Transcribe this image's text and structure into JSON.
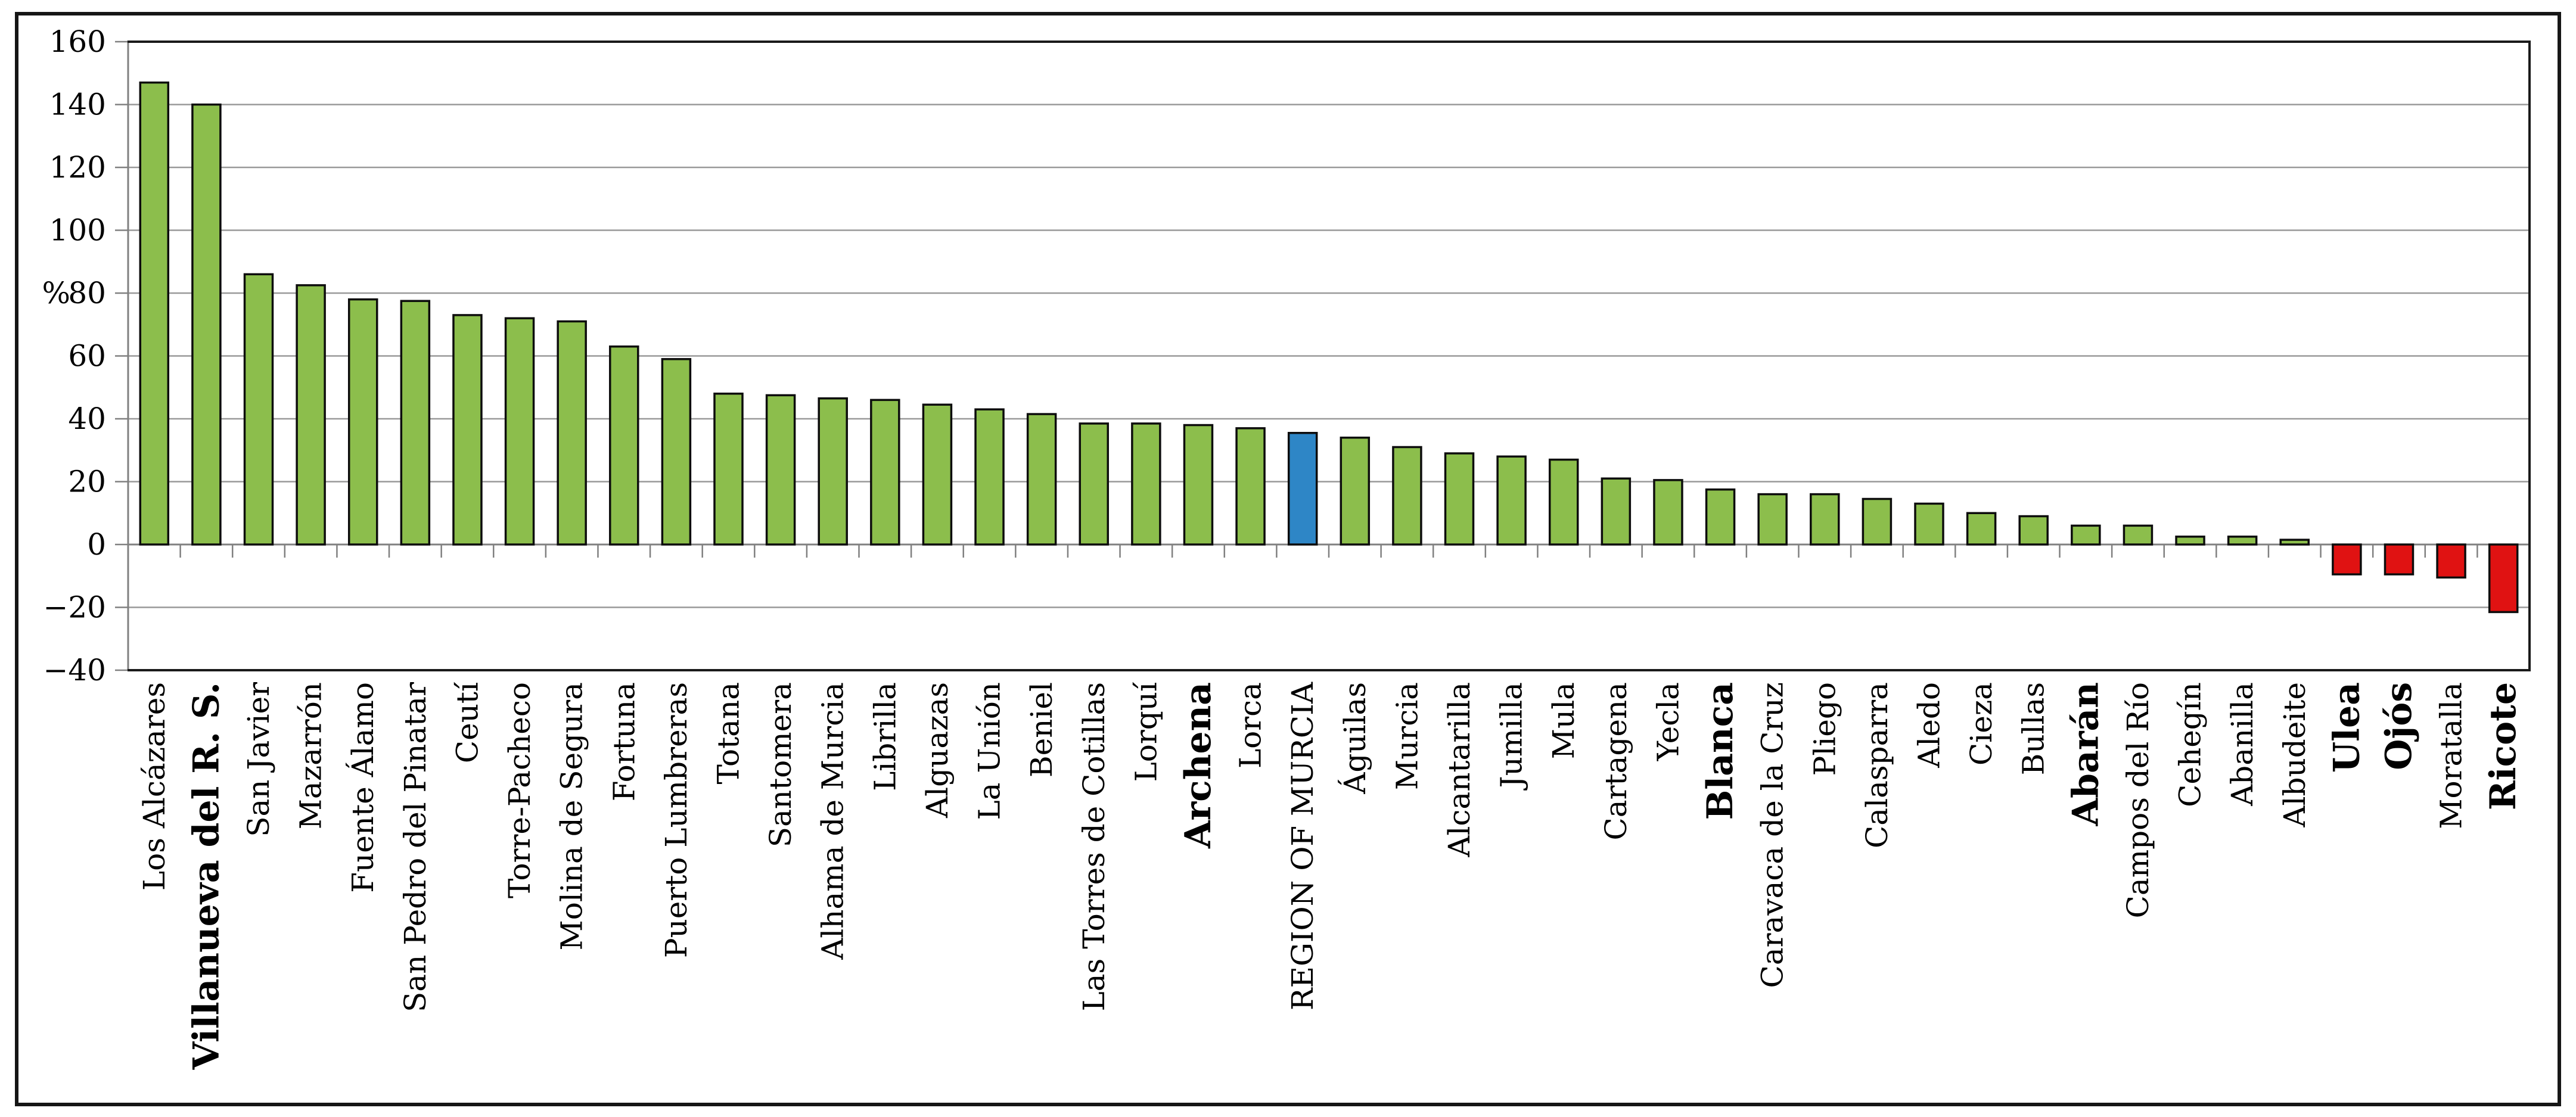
{
  "chart_data": {
    "type": "bar",
    "title": "",
    "xlabel": "",
    "ylabel": "%",
    "ylim": [
      -40,
      160
    ],
    "ytick_step": 20,
    "yticks": [
      "160",
      "140",
      "120",
      "100",
      "80",
      "60",
      "40",
      "20",
      "0",
      "−20",
      "−40"
    ],
    "grid": true,
    "legend": "none",
    "bars": [
      {
        "label": "Los Alcázares",
        "value": 147,
        "color": "green",
        "bold": false
      },
      {
        "label": "Villanueva del R. S.",
        "value": 140,
        "color": "green",
        "bold": true
      },
      {
        "label": "San Javier",
        "value": 86,
        "color": "green",
        "bold": false
      },
      {
        "label": "Mazarrón",
        "value": 82.5,
        "color": "green",
        "bold": false
      },
      {
        "label": "Fuente Álamo",
        "value": 78,
        "color": "green",
        "bold": false
      },
      {
        "label": "San Pedro del Pinatar",
        "value": 77.5,
        "color": "green",
        "bold": false
      },
      {
        "label": "Ceutí",
        "value": 73,
        "color": "green",
        "bold": false
      },
      {
        "label": "Torre-Pacheco",
        "value": 72,
        "color": "green",
        "bold": false
      },
      {
        "label": "Molina de Segura",
        "value": 71,
        "color": "green",
        "bold": false
      },
      {
        "label": "Fortuna",
        "value": 63,
        "color": "green",
        "bold": false
      },
      {
        "label": "Puerto Lumbreras",
        "value": 59,
        "color": "green",
        "bold": false
      },
      {
        "label": "Totana",
        "value": 48,
        "color": "green",
        "bold": false
      },
      {
        "label": "Santomera",
        "value": 47.5,
        "color": "green",
        "bold": false
      },
      {
        "label": "Alhama de Murcia",
        "value": 46.5,
        "color": "green",
        "bold": false
      },
      {
        "label": "Librilla",
        "value": 46,
        "color": "green",
        "bold": false
      },
      {
        "label": "Alguazas",
        "value": 44.5,
        "color": "green",
        "bold": false
      },
      {
        "label": "La Unión",
        "value": 43,
        "color": "green",
        "bold": false
      },
      {
        "label": "Beniel",
        "value": 41.5,
        "color": "green",
        "bold": false
      },
      {
        "label": "Las Torres de Cotillas",
        "value": 38.5,
        "color": "green",
        "bold": false
      },
      {
        "label": "Lorquí",
        "value": 38.5,
        "color": "green",
        "bold": false
      },
      {
        "label": "Archena",
        "value": 38,
        "color": "green",
        "bold": true
      },
      {
        "label": "Lorca",
        "value": 37,
        "color": "green",
        "bold": false
      },
      {
        "label": "REGION OF MURCIA",
        "value": 35.5,
        "color": "blue",
        "bold": false
      },
      {
        "label": "Águilas",
        "value": 34,
        "color": "green",
        "bold": false
      },
      {
        "label": "Murcia",
        "value": 31,
        "color": "green",
        "bold": false
      },
      {
        "label": "Alcantarilla",
        "value": 29,
        "color": "green",
        "bold": false
      },
      {
        "label": "Jumilla",
        "value": 28,
        "color": "green",
        "bold": false
      },
      {
        "label": "Mula",
        "value": 27,
        "color": "green",
        "bold": false
      },
      {
        "label": "Cartagena",
        "value": 21,
        "color": "green",
        "bold": false
      },
      {
        "label": "Yecla",
        "value": 20.5,
        "color": "green",
        "bold": false
      },
      {
        "label": "Blanca",
        "value": 17.5,
        "color": "green",
        "bold": true
      },
      {
        "label": "Caravaca de la Cruz",
        "value": 16,
        "color": "green",
        "bold": false
      },
      {
        "label": "Pliego",
        "value": 16,
        "color": "green",
        "bold": false
      },
      {
        "label": "Calasparra",
        "value": 14.5,
        "color": "green",
        "bold": false
      },
      {
        "label": "Aledo",
        "value": 13,
        "color": "green",
        "bold": false
      },
      {
        "label": "Cieza",
        "value": 10,
        "color": "green",
        "bold": false
      },
      {
        "label": "Bullas",
        "value": 9,
        "color": "green",
        "bold": false
      },
      {
        "label": "Abarán",
        "value": 6,
        "color": "green",
        "bold": true
      },
      {
        "label": "Campos del Río",
        "value": 6,
        "color": "green",
        "bold": false
      },
      {
        "label": "Cehegín",
        "value": 2.5,
        "color": "green",
        "bold": false
      },
      {
        "label": "Abanilla",
        "value": 2.5,
        "color": "green",
        "bold": false
      },
      {
        "label": "Albudeite",
        "value": 1.5,
        "color": "green",
        "bold": false
      },
      {
        "label": "Ulea",
        "value": -9.5,
        "color": "red",
        "bold": true
      },
      {
        "label": "Ojós",
        "value": -9.5,
        "color": "red",
        "bold": true
      },
      {
        "label": "Moratalla",
        "value": -10.5,
        "color": "red",
        "bold": false
      },
      {
        "label": "Ricote",
        "value": -21.5,
        "color": "red",
        "bold": true
      }
    ],
    "colors": {
      "green": "#8CBE4C",
      "blue": "#2E86C6",
      "red": "#E01212",
      "bar_border": "#0D0D0D",
      "grid": "#999999",
      "axis": "#808080",
      "frame": "#1A1A1A",
      "text": "#000000",
      "background": "#FFFFFF"
    }
  }
}
